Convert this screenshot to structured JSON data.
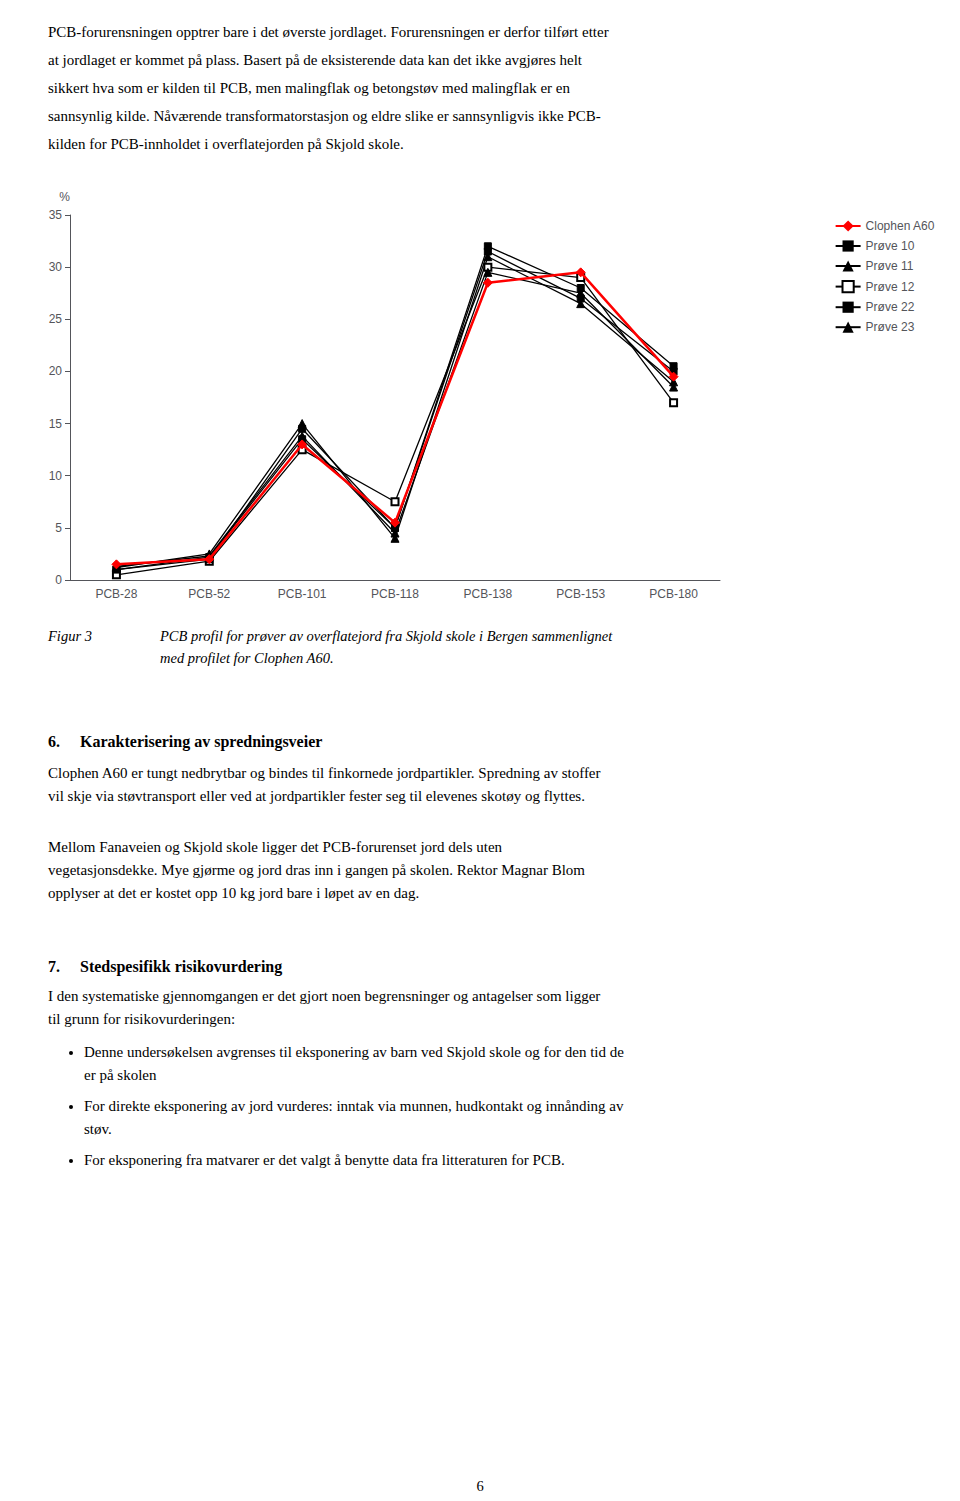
{
  "chart_data": {
    "type": "line",
    "categories": [
      "PCB-28",
      "PCB-52",
      "PCB-101",
      "PCB-118",
      "PCB-138",
      "PCB-153",
      "PCB-180"
    ],
    "ylabel": "%",
    "ylim": [
      0,
      35
    ],
    "yticks": [
      0,
      5,
      10,
      15,
      20,
      25,
      30,
      35
    ],
    "grid": false,
    "legend": "upper right",
    "series": [
      {
        "name": "Clophen A60",
        "color": "#ff0000",
        "marker": "diamond",
        "values": [
          1.5,
          2.0,
          13.0,
          5.5,
          28.5,
          29.5,
          19.5
        ]
      },
      {
        "name": "Prøve 10",
        "color": "#000000",
        "marker": "square",
        "values": [
          1.0,
          2.2,
          13.5,
          5.0,
          31.5,
          27.0,
          20.0
        ]
      },
      {
        "name": "Prøve 11",
        "color": "#000000",
        "marker": "triangle",
        "values": [
          1.2,
          2.5,
          15.0,
          4.0,
          31.0,
          26.5,
          19.0
        ]
      },
      {
        "name": "Prøve 12",
        "color": "#000000",
        "marker": "open square",
        "values": [
          0.5,
          1.8,
          12.5,
          7.5,
          30.0,
          29.0,
          17.0
        ]
      },
      {
        "name": "Prøve 22",
        "color": "#000000",
        "marker": "square",
        "values": [
          1.0,
          2.0,
          14.5,
          5.0,
          32.0,
          28.0,
          20.5
        ]
      },
      {
        "name": "Prøve 23",
        "color": "#000000",
        "marker": "triangle",
        "values": [
          1.3,
          2.3,
          13.8,
          4.5,
          29.5,
          27.5,
          18.5
        ]
      }
    ],
    "annotations": [
      [
        "PCB-forurensningen opptrer bare i det øverste jordlaget. Forurensningen er derfor tilført etter",
        "at jordlaget er kommet på plass. Basert på de eksisterende data kan det ikke avgjøres helt",
        "sikkert hva som er kilden til PCB, men malingflak og betongstøv med malingflak er en",
        "sannsynlig kilde. Nåværende transformatorstasjon og eldre slike er sannsynligvis ikke PCB-",
        "kilden for PCB-innholdet i overflatejorden på Skjold skole."
      ],
      [
        "Figur 3",
        "PCB profil for prøver av overflatejord fra Skjold skole i Bergen sammenlignet",
        "med profilet for Clophen A60."
      ],
      [
        "6.  Karakterisering av spredningsveier"
      ],
      [
        "Clophen A60 er tungt nedbrytbar og bindes til finkornede jordpartikler. Spredning av stoffer",
        "vil skje via støvtransport eller ved at jordpartikler fester seg til elevenes skotøy og flyttes."
      ],
      [
        "Mellom Fanaveien og Skjold skole ligger det PCB-forurenset jord dels uten",
        "vegetasjonsdekke. Mye gjørme og jord dras inn i gangen på skolen. Rektor Magnar Blom",
        "opplyser at det er kostet opp 10 kg jord bare i løpet av en dag."
      ],
      [
        "7.  Stedspesifikk risikovurdering"
      ],
      [
        "I den systematiske gjennomgangen er det gjort noen begrensninger og antagelser som ligger",
        "til grunn for risikovurderingen:"
      ],
      [
        "Denne undersøkelsen avgrenses til eksponering av barn ved Skjold skole og for den tid de",
        "er på skolen"
      ],
      [
        "For direkte eksponering av jord vurderes: inntak via munnen, hudkontakt og innånding av",
        "støv."
      ],
      [
        "For eksponering fra matvarer er det valgt å benytte data fra litteraturen for PCB."
      ],
      [
        "6"
      ]
    ]
  }
}
